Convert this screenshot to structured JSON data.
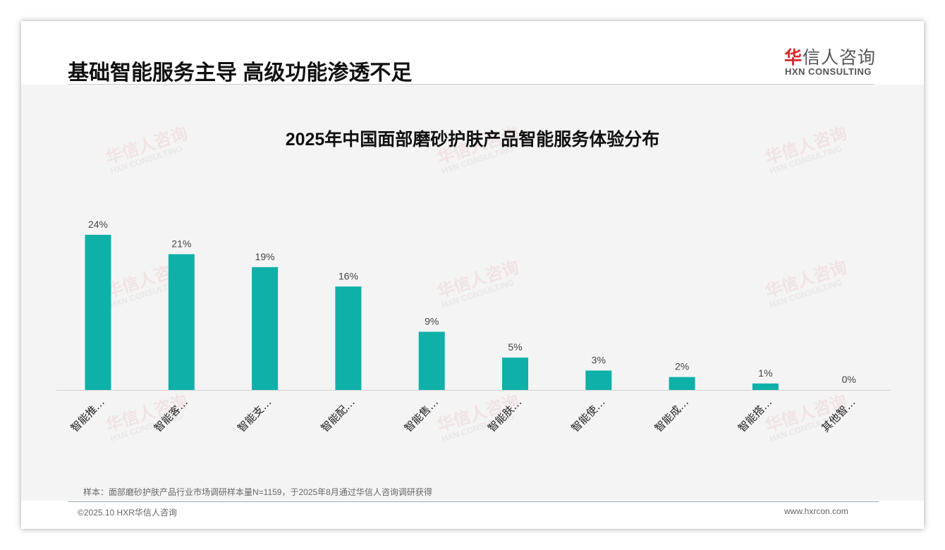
{
  "header": {
    "title": "基础智能服务主导 高级功能渗透不足",
    "logo_cn_mark": "华",
    "logo_cn_rest": "信人咨询",
    "logo_en": "HXN CONSULTING"
  },
  "footer": {
    "note": "样本：面部磨砂护肤产品行业市场调研样本量N=1159，于2025年8月通过华信人咨询调研获得",
    "copyright": "©2025.10 HXR华信人咨询",
    "website": "www.hxrcon.com"
  },
  "colors": {
    "bar": "#0fb0a8"
  },
  "chart_data": {
    "type": "bar",
    "title": "2025年中国面部磨砂护肤产品智能服务体验分布",
    "categories": [
      "智能推…",
      "智能客…",
      "智能支…",
      "智能配…",
      "智能售…",
      "智能肤…",
      "智能使…",
      "智能成…",
      "智能搭…",
      "其他智…"
    ],
    "values": [
      24,
      21,
      19,
      16,
      9,
      5,
      3,
      2,
      1,
      0
    ],
    "data_labels": [
      "24%",
      "21%",
      "19%",
      "16%",
      "9%",
      "5%",
      "3%",
      "2%",
      "1%",
      "0%"
    ],
    "ylim": [
      0,
      24
    ],
    "xlabel": "",
    "ylabel": "",
    "grid": false
  }
}
